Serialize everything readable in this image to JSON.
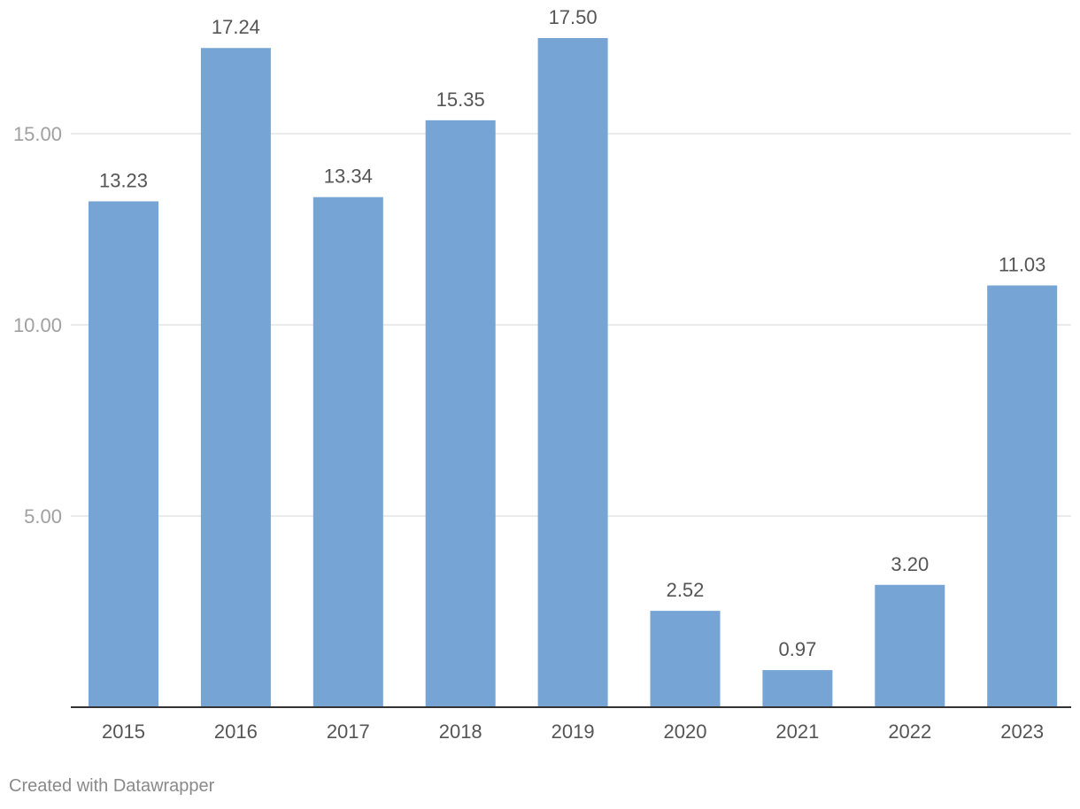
{
  "chart_data": {
    "type": "bar",
    "categories": [
      "2015",
      "2016",
      "2017",
      "2018",
      "2019",
      "2020",
      "2021",
      "2022",
      "2023"
    ],
    "values": [
      13.23,
      17.24,
      13.34,
      15.35,
      17.5,
      2.52,
      0.97,
      3.2,
      11.03
    ],
    "value_labels": [
      "13.23",
      "17.24",
      "13.34",
      "15.35",
      "17.50",
      "2.52",
      "0.97",
      "3.20",
      "11.03"
    ],
    "y_ticks": [
      5,
      10,
      15
    ],
    "y_tick_labels": [
      "5.00",
      "10.00",
      "15.00"
    ],
    "ylim": [
      0,
      20
    ],
    "grid": true,
    "bar_color": "#76a4d4",
    "title": "",
    "xlabel": "",
    "ylabel": ""
  },
  "footer": {
    "credit": "Created with Datawrapper"
  }
}
